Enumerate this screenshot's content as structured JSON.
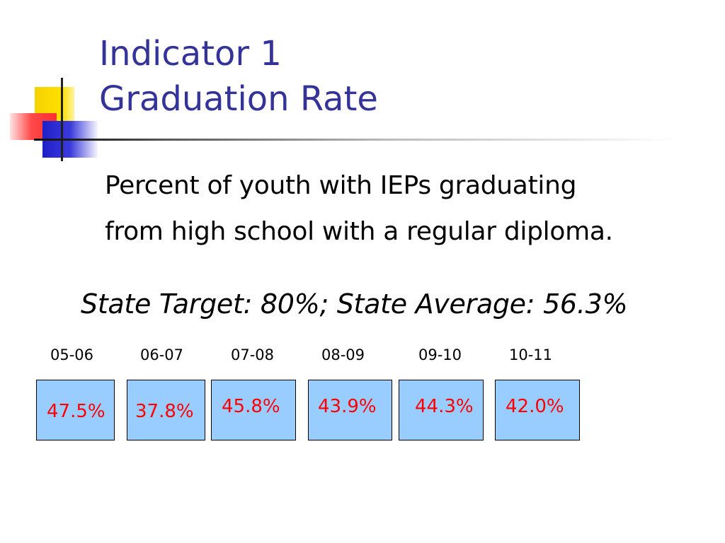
{
  "title": {
    "line1": "Indicator 1",
    "line2": "Graduation Rate"
  },
  "description": {
    "line1": "Percent of youth with IEPs graduating",
    "line2": "from high school with a regular diploma."
  },
  "state_summary": "State Target: 80%; State Average: 56.3%",
  "years": [
    {
      "label": "05-06",
      "rate": "47.5%"
    },
    {
      "label": "06-07",
      "rate": "37.8%"
    },
    {
      "label": "07-08",
      "rate": "45.8%"
    },
    {
      "label": "08-09",
      "rate": "43.9%"
    },
    {
      "label": "09-10",
      "rate": "44.3%"
    },
    {
      "label": "10-11",
      "rate": "42.0%"
    }
  ],
  "colors": {
    "title": "#333399",
    "box_fill": "#99ccff",
    "rate_text": "#ff0000"
  }
}
